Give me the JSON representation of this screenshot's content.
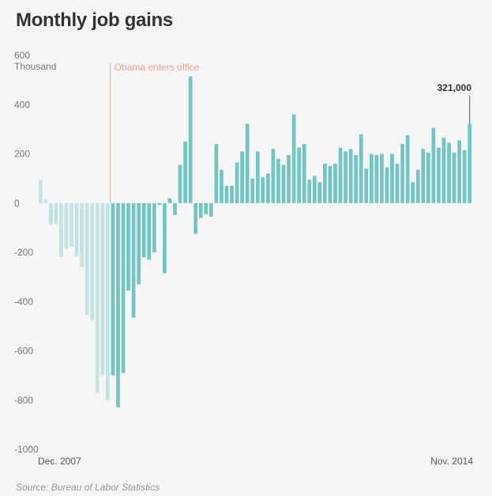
{
  "chart_data": {
    "type": "bar",
    "title": "Monthly job gains",
    "unit_label": "Thousand",
    "source": "Source:  Bureau of Labor Statistics",
    "ylim": [
      -1000,
      600
    ],
    "y_ticks": [
      {
        "value": 600,
        "label": "600"
      },
      {
        "value": 400,
        "label": "400"
      },
      {
        "value": 200,
        "label": "200"
      },
      {
        "value": 0,
        "label": "0"
      },
      {
        "value": -200,
        "label": "-200"
      },
      {
        "value": -400,
        "label": "-400"
      },
      {
        "value": -600,
        "label": "-600"
      },
      {
        "value": -800,
        "label": "-800"
      },
      {
        "value": -1000,
        "label": "-1000"
      }
    ],
    "x_start_label": "Dec. 2007",
    "x_end_label": "Nov. 2014",
    "grid": false,
    "colors": {
      "before_obama": "#c3e4e2",
      "after_obama": "#72c5c2",
      "annotation": "#f4a08f",
      "callout_line": "#555555"
    },
    "annotation": {
      "label": "Obama enters office",
      "index": 14
    },
    "callout": {
      "label": "321,000",
      "index": 83
    },
    "values": [
      95,
      15,
      -88,
      -85,
      -218,
      -185,
      -175,
      -215,
      -260,
      -455,
      -475,
      -770,
      -700,
      -800,
      -700,
      -830,
      -690,
      -355,
      -465,
      -330,
      -220,
      -230,
      -200,
      -8,
      -285,
      20,
      -48,
      155,
      250,
      515,
      -125,
      -60,
      -45,
      -55,
      240,
      135,
      70,
      70,
      165,
      210,
      322,
      100,
      210,
      105,
      120,
      220,
      180,
      155,
      195,
      360,
      225,
      240,
      95,
      110,
      85,
      160,
      150,
      160,
      225,
      210,
      220,
      195,
      280,
      140,
      200,
      195,
      200,
      145,
      200,
      160,
      240,
      275,
      85,
      135,
      220,
      205,
      305,
      225,
      265,
      245,
      205,
      255,
      215,
      321
    ]
  }
}
